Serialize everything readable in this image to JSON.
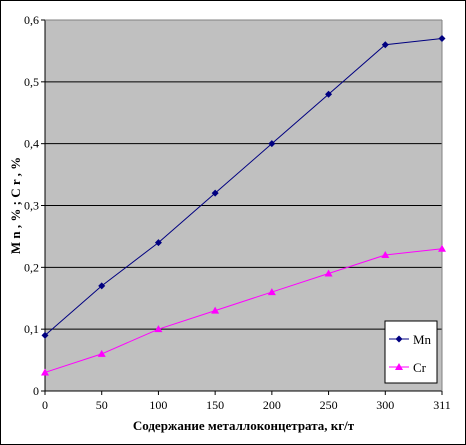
{
  "chart_data": {
    "type": "line",
    "categories": [
      "0",
      "50",
      "100",
      "150",
      "200",
      "250",
      "300",
      "311"
    ],
    "series": [
      {
        "name": "Mn",
        "values": [
          0.09,
          0.17,
          0.24,
          0.32,
          0.4,
          0.48,
          0.56,
          0.57
        ],
        "color": "#000080",
        "marker": "diamond"
      },
      {
        "name": "Cr",
        "values": [
          0.03,
          0.06,
          0.1,
          0.13,
          0.16,
          0.19,
          0.22,
          0.23
        ],
        "color": "#ff00ff",
        "marker": "triangle"
      }
    ],
    "xlabel": "Содержание металлоконцетрата, кг/т",
    "ylabel": "M n ,  % ;  C r , %",
    "ylim": [
      0,
      0.6
    ],
    "yticks": [
      "0",
      "0,1",
      "0,2",
      "0,3",
      "0,4",
      "0,5",
      "0,6"
    ],
    "plot_background": "#c0c0c0",
    "grid": true,
    "legend_position": "bottom-right"
  }
}
